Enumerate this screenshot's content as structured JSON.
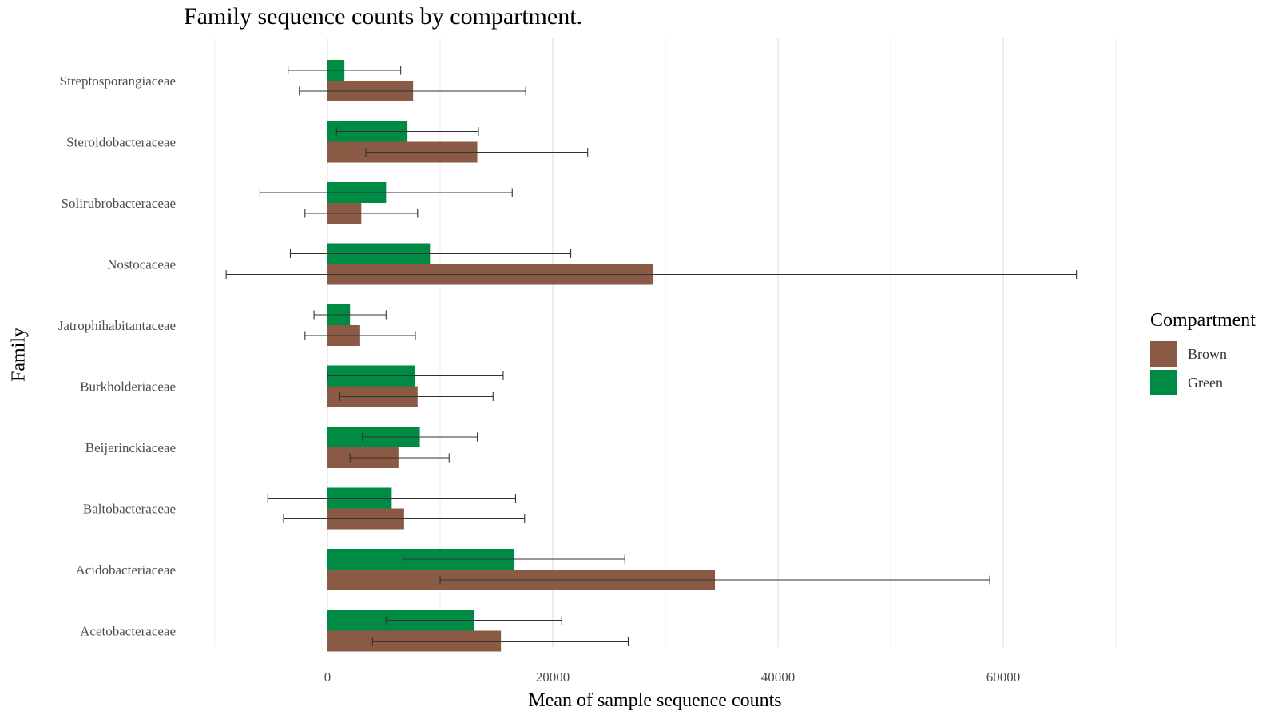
{
  "chart_data": {
    "type": "bar",
    "orientation": "horizontal",
    "title": "Family sequence counts by compartment.",
    "xlabel": "Mean of sample sequence counts",
    "ylabel": "Family",
    "xlim": [
      -10000,
      75000
    ],
    "x_ticks": [
      0,
      20000,
      40000,
      60000
    ],
    "x_tick_labels": [
      "0",
      "20000",
      "40000",
      "60000"
    ],
    "grid": true,
    "legend": {
      "title": "Compartment",
      "placement": "right"
    },
    "categories": [
      "Streptosporangiaceae",
      "Steroidobacteraceae",
      "Solirubrobacteraceae",
      "Nostocaceae",
      "Jatrophihabitantaceae",
      "Burkholderiaceae",
      "Beijerinckiaceae",
      "Baltobacteraceae",
      "Acidobacteriaceae",
      "Acetobacteraceae"
    ],
    "series": [
      {
        "name": "Green",
        "color": "#008b45",
        "values": [
          1500,
          7100,
          5200,
          9100,
          2000,
          7800,
          8200,
          5700,
          16600,
          13000
        ],
        "err_low": [
          -3500,
          800,
          -6000,
          -3300,
          -1200,
          0,
          3100,
          -5300,
          6700,
          5200
        ],
        "err_high": [
          6500,
          13400,
          16400,
          21600,
          5200,
          15600,
          13300,
          16700,
          26400,
          20800
        ]
      },
      {
        "name": "Brown",
        "color": "#8b5a45",
        "values": [
          7600,
          13300,
          3000,
          28900,
          2900,
          8000,
          6300,
          6800,
          34400,
          15400
        ],
        "err_low": [
          -2500,
          3400,
          -2000,
          -9000,
          -2000,
          1100,
          2000,
          -3900,
          10000,
          4000
        ],
        "err_high": [
          17600,
          23100,
          8000,
          66500,
          7800,
          14700,
          10800,
          17500,
          58800,
          26700
        ]
      }
    ]
  }
}
